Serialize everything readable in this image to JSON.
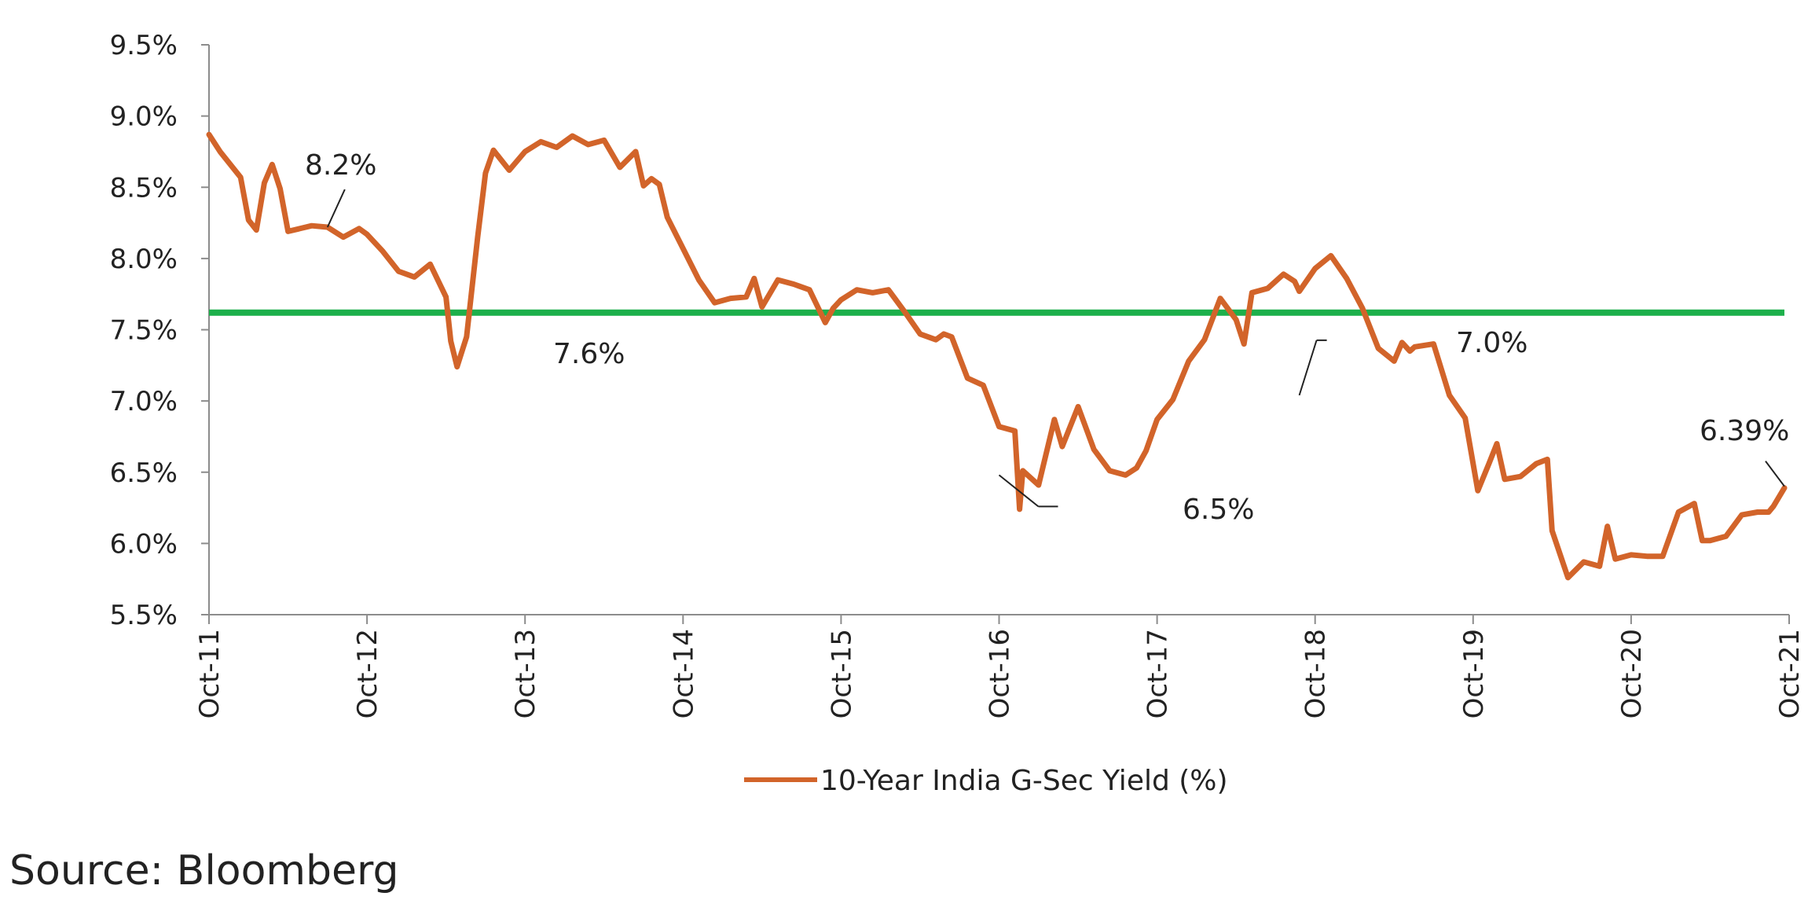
{
  "chart_data": {
    "type": "line",
    "title": "",
    "xlabel": "",
    "ylabel": "",
    "ylim": [
      5.5,
      9.5
    ],
    "y_ticks": [
      "5.5%",
      "6.0%",
      "6.5%",
      "7.0%",
      "7.5%",
      "8.0%",
      "8.5%",
      "9.0%",
      "9.5%"
    ],
    "y_tick_values": [
      5.5,
      6.0,
      6.5,
      7.0,
      7.5,
      8.0,
      8.5,
      9.0,
      9.5
    ],
    "x_ticks": [
      "Oct-11",
      "Oct-12",
      "Oct-13",
      "Oct-14",
      "Oct-15",
      "Oct-16",
      "Oct-17",
      "Oct-18",
      "Oct-19",
      "Oct-20",
      "Oct-21"
    ],
    "xlim": [
      2011.75,
      2021.75
    ],
    "grid": false,
    "legend_position": "bottom",
    "series": [
      {
        "name": "10-Year India G-Sec Yield (%)",
        "color": "#D2642A",
        "x": [
          2011.75,
          2011.82,
          2011.95,
          2012.0,
          2012.05,
          2012.1,
          2012.15,
          2012.2,
          2012.25,
          2012.4,
          2012.5,
          2012.6,
          2012.7,
          2012.75,
          2012.85,
          2012.95,
          2013.05,
          2013.15,
          2013.25,
          2013.28,
          2013.32,
          2013.38,
          2013.45,
          2013.5,
          2013.55,
          2013.65,
          2013.75,
          2013.85,
          2013.95,
          2014.05,
          2014.15,
          2014.25,
          2014.35,
          2014.45,
          2014.5,
          2014.55,
          2014.6,
          2014.65,
          2014.75,
          2014.85,
          2014.95,
          2015.05,
          2015.15,
          2015.2,
          2015.25,
          2015.35,
          2015.45,
          2015.55,
          2015.65,
          2015.7,
          2015.75,
          2015.85,
          2015.95,
          2016.05,
          2016.15,
          2016.25,
          2016.35,
          2016.4,
          2016.45,
          2016.55,
          2016.65,
          2016.75,
          2016.85,
          2016.88,
          2016.9,
          2017.0,
          2017.1,
          2017.15,
          2017.25,
          2017.35,
          2017.45,
          2017.55,
          2017.62,
          2017.68,
          2017.75,
          2017.85,
          2017.95,
          2018.05,
          2018.15,
          2018.25,
          2018.3,
          2018.35,
          2018.45,
          2018.55,
          2018.62,
          2018.65,
          2018.75,
          2018.85,
          2018.95,
          2019.05,
          2019.15,
          2019.25,
          2019.3,
          2019.35,
          2019.38,
          2019.5,
          2019.6,
          2019.7,
          2019.78,
          2019.85,
          2019.9,
          2019.95,
          2020.05,
          2020.15,
          2020.22,
          2020.25,
          2020.35,
          2020.45,
          2020.55,
          2020.6,
          2020.65,
          2020.75,
          2020.85,
          2020.95,
          2021.05,
          2021.15,
          2021.2,
          2021.25,
          2021.35,
          2021.45,
          2021.55,
          2021.62,
          2021.65,
          2021.72
        ],
        "values": [
          8.87,
          8.75,
          8.57,
          8.27,
          8.2,
          8.53,
          8.66,
          8.49,
          8.19,
          8.23,
          8.22,
          8.15,
          8.21,
          8.17,
          8.05,
          7.91,
          7.87,
          7.96,
          7.73,
          7.42,
          7.24,
          7.45,
          8.15,
          8.6,
          8.76,
          8.62,
          8.75,
          8.82,
          8.78,
          8.86,
          8.8,
          8.83,
          8.64,
          8.75,
          8.51,
          8.56,
          8.52,
          8.29,
          8.07,
          7.85,
          7.69,
          7.72,
          7.73,
          7.86,
          7.66,
          7.85,
          7.82,
          7.78,
          7.55,
          7.65,
          7.71,
          7.78,
          7.76,
          7.78,
          7.63,
          7.47,
          7.43,
          7.47,
          7.45,
          7.16,
          7.11,
          6.82,
          6.79,
          6.24,
          6.51,
          6.41,
          6.87,
          6.68,
          6.96,
          6.66,
          6.51,
          6.48,
          6.53,
          6.65,
          6.87,
          7.01,
          7.28,
          7.43,
          7.72,
          7.57,
          7.4,
          7.76,
          7.79,
          7.89,
          7.84,
          7.77,
          7.93,
          8.02,
          7.86,
          7.65,
          7.37,
          7.28,
          7.41,
          7.35,
          7.38,
          7.4,
          7.04,
          6.88,
          6.37,
          6.56,
          6.7,
          6.45,
          6.47,
          6.56,
          6.59,
          6.09,
          5.76,
          5.87,
          5.84,
          6.12,
          5.89,
          5.92,
          5.91,
          5.91,
          6.22,
          6.28,
          6.02,
          6.02,
          6.05,
          6.2,
          6.22,
          6.22,
          6.26,
          6.39
        ]
      },
      {
        "name": "",
        "color": "#1DB04B",
        "x": [
          2011.75,
          2021.72
        ],
        "values": [
          7.62,
          7.62
        ]
      }
    ],
    "annotations": [
      "8.2%",
      "7.6%",
      "6.5%",
      "7.0%",
      "6.39%"
    ],
    "annotation_points": [
      {
        "x": 2012.5,
        "y": 8.22
      },
      {
        "x": 2016.75,
        "y": 6.48
      },
      {
        "x": 2018.65,
        "y": 7.04
      },
      {
        "x": 2021.72,
        "y": 6.39
      }
    ]
  },
  "source": "Source: Bloomberg"
}
